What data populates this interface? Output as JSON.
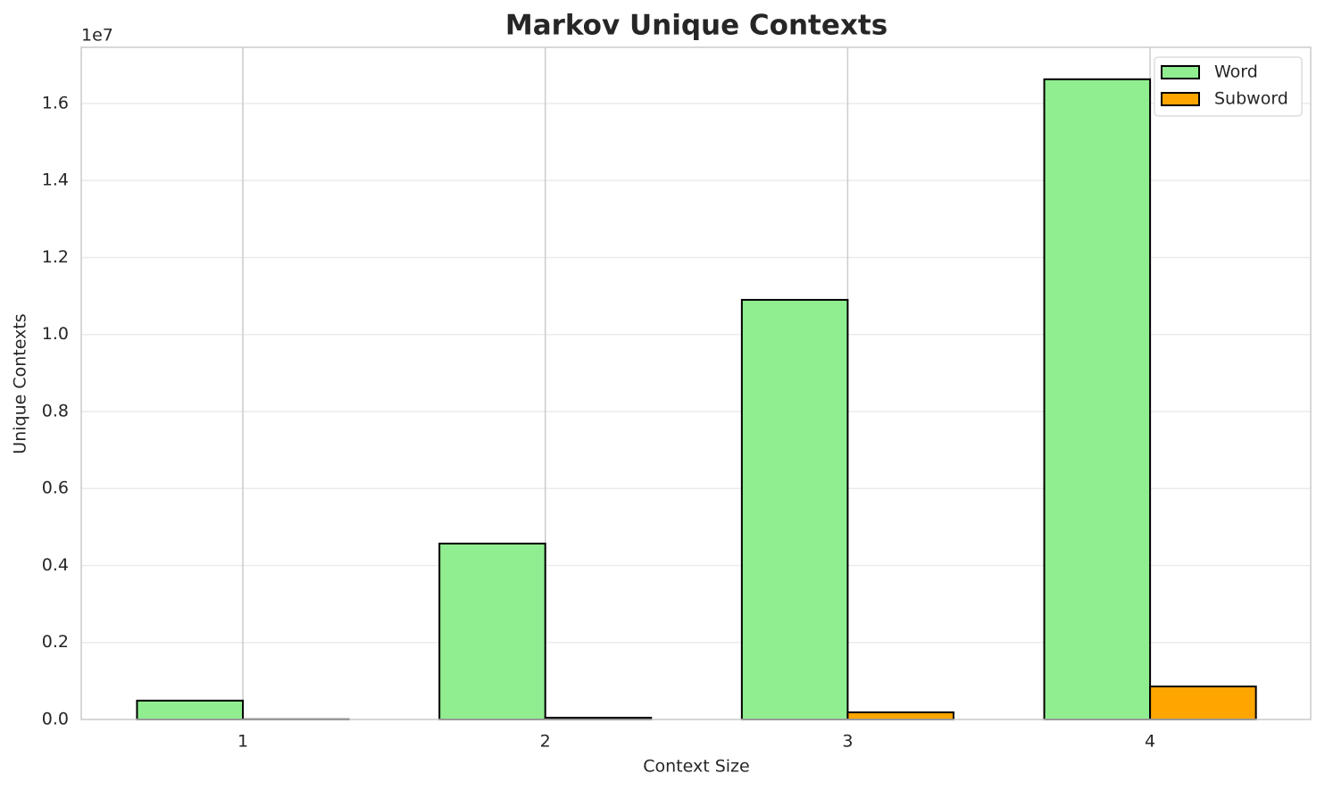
{
  "chart_data": {
    "type": "bar",
    "title": "Markov Unique Contexts",
    "x_label": "Context Size",
    "y_label": "Unique Contexts",
    "y_offset_label": "1e7",
    "categories": [
      "1",
      "2",
      "3",
      "4"
    ],
    "series": [
      {
        "name": "Word",
        "color": "#90ee90",
        "values": [
          490000,
          4570000,
          10900000,
          16630000
        ]
      },
      {
        "name": "Subword",
        "color": "#ffa500",
        "values": [
          5000,
          46000,
          185000,
          858000
        ]
      }
    ],
    "ylim": [
      0,
      17460000
    ],
    "yticks": [
      {
        "value": 0,
        "label": "0.0"
      },
      {
        "value": 2000000,
        "label": "0.2"
      },
      {
        "value": 4000000,
        "label": "0.4"
      },
      {
        "value": 6000000,
        "label": "0.6"
      },
      {
        "value": 8000000,
        "label": "0.8"
      },
      {
        "value": 10000000,
        "label": "1.0"
      },
      {
        "value": 12000000,
        "label": "1.2"
      },
      {
        "value": 14000000,
        "label": "1.4"
      },
      {
        "value": 16000000,
        "label": "1.6"
      }
    ],
    "grid": true,
    "legend": "upper right"
  }
}
